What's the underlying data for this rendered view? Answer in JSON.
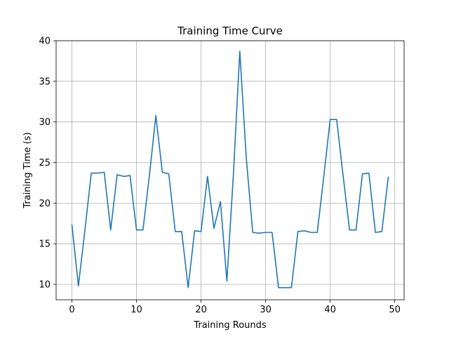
{
  "chart_data": {
    "type": "line",
    "title": "Training Time Curve",
    "xlabel": "Training Rounds",
    "ylabel": "Training Time (s)",
    "xlim": [
      -2.45,
      51.45
    ],
    "ylim": [
      8.1,
      40
    ],
    "xticks": [
      0,
      10,
      20,
      30,
      40,
      50
    ],
    "yticks": [
      10,
      15,
      20,
      25,
      30,
      35,
      40
    ],
    "grid": true,
    "legend": "none",
    "series": [
      {
        "color": "#1f77b4",
        "x": [
          0,
          1,
          2,
          3,
          4,
          5,
          6,
          7,
          8,
          9,
          10,
          11,
          12,
          13,
          14,
          15,
          16,
          17,
          18,
          19,
          20,
          21,
          22,
          23,
          24,
          25,
          26,
          27,
          28,
          29,
          30,
          31,
          32,
          33,
          34,
          35,
          36,
          37,
          38,
          39,
          40,
          41,
          42,
          43,
          44,
          45,
          46,
          47,
          48,
          49
        ],
        "y": [
          17.3,
          9.8,
          16.6,
          23.7,
          23.7,
          23.8,
          16.7,
          23.5,
          23.3,
          23.4,
          16.7,
          16.7,
          23.4,
          30.8,
          23.8,
          23.6,
          16.5,
          16.5,
          9.6,
          16.6,
          16.5,
          23.3,
          16.9,
          20.2,
          10.4,
          23.4,
          38.7,
          25.6,
          16.4,
          16.3,
          16.4,
          16.4,
          9.6,
          9.6,
          9.6,
          16.5,
          16.6,
          16.4,
          16.4,
          23.2,
          30.3,
          30.3,
          23.4,
          16.7,
          16.7,
          23.6,
          23.7,
          16.4,
          16.5,
          23.2
        ]
      }
    ]
  }
}
